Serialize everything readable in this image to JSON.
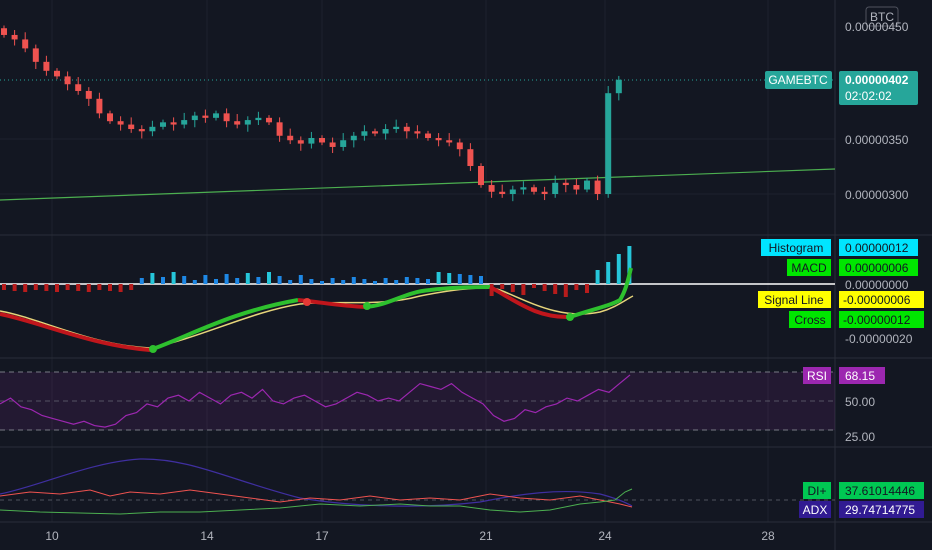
{
  "colors": {
    "background": "#131722",
    "grid": "#1e222d",
    "up": "#26a69a",
    "down": "#ef5350",
    "trendline": "#4caf50",
    "last_price_tag": "#26a69a",
    "histogram_tag": "#00e5ff",
    "macd_tag": "#00e600",
    "signal_tag": "#ffff00",
    "cross_tag": "#00e600",
    "rsi_tag": "#9c27b0",
    "rsi_line": "#9c27b0",
    "di_plus_tag": "#00c853",
    "adx_tag": "#311b92"
  },
  "currency_badge": "BTC",
  "price_pane": {
    "symbol_tag": "GAMEBTC",
    "last_price": "0.00000402",
    "countdown": "02:02:02",
    "axis_labels": [
      "0.00000450",
      "0.00000350",
      "0.00000300"
    ]
  },
  "macd_pane": {
    "histogram_label": "Histogram",
    "histogram_value": "0.00000012",
    "macd_label": "MACD",
    "macd_value": "0.00000006",
    "zero_label": "0.00000000",
    "signal_label": "Signal Line",
    "signal_value": "-0.00000006",
    "cross_label": "Cross",
    "cross_value": "-0.00000012",
    "axis_low": "-0.00000020"
  },
  "rsi_pane": {
    "label": "RSI",
    "value": "68.15",
    "axis_labels": [
      "50.00",
      "25.00"
    ]
  },
  "adx_pane": {
    "di_plus_label": "DI+",
    "di_plus_value": "37.61014446",
    "adx_label": "ADX",
    "adx_value": "29.74714775"
  },
  "time_axis": [
    "10",
    "14",
    "17",
    "21",
    "24",
    "28"
  ],
  "chart_data": {
    "type": "candlestick",
    "title": "",
    "symbol": "GAMEBTC",
    "x_ticks": [
      "10",
      "14",
      "17",
      "21",
      "24",
      "28"
    ],
    "price_axis": [
      "0.00000450",
      "0.00000350",
      "0.00000300"
    ],
    "last_price": 4.02e-06,
    "candles_close": [
      4.42e-06,
      4.38e-06,
      4.3e-06,
      4.18e-06,
      4.1e-06,
      4.05e-06,
      3.98e-06,
      3.92e-06,
      3.85e-06,
      3.72e-06,
      3.65e-06,
      3.62e-06,
      3.58e-06,
      3.56e-06,
      3.6e-06,
      3.64e-06,
      3.62e-06,
      3.66e-06,
      3.7e-06,
      3.68e-06,
      3.72e-06,
      3.65e-06,
      3.62e-06,
      3.66e-06,
      3.68e-06,
      3.64e-06,
      3.52e-06,
      3.48e-06,
      3.45e-06,
      3.5e-06,
      3.46e-06,
      3.42e-06,
      3.48e-06,
      3.52e-06,
      3.56e-06,
      3.54e-06,
      3.58e-06,
      3.6e-06,
      3.56e-06,
      3.54e-06,
      3.5e-06,
      3.48e-06,
      3.46e-06,
      3.4e-06,
      3.25e-06,
      3.08e-06,
      3.02e-06,
      3e-06,
      3.04e-06,
      3.06e-06,
      3.02e-06,
      3e-06,
      3.1e-06,
      3.08e-06,
      3.04e-06,
      3.12e-06,
      3e-06,
      3.9e-06,
      4.02e-06
    ],
    "rsi_levels": [
      70,
      50,
      30
    ],
    "rsi_last": 68.15,
    "macd": {
      "histogram": 1.2e-07,
      "macd": 6e-08,
      "signal": -6e-08,
      "cross": -1.2e-07
    },
    "adx": {
      "di_plus": 37.61014446,
      "adx": 29.74714775
    }
  }
}
